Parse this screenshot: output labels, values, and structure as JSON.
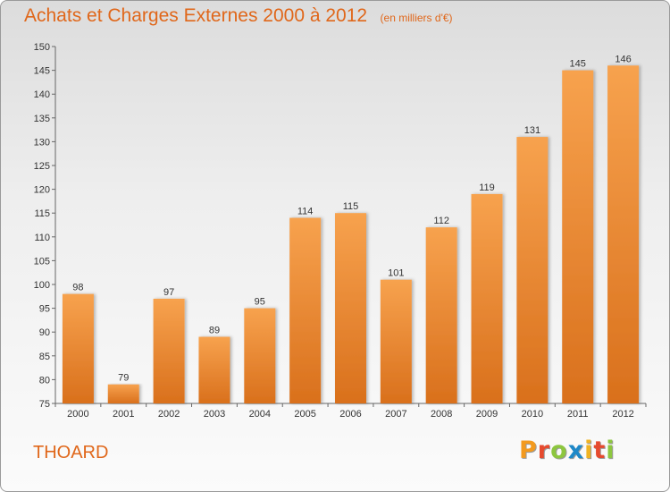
{
  "chart_data": {
    "type": "bar",
    "title": "Achats et Charges Externes 2000 à 2012",
    "unit_note": "(en milliers d'€)",
    "xlabel": "",
    "ylabel": "",
    "categories": [
      "2000",
      "2001",
      "2002",
      "2003",
      "2004",
      "2005",
      "2006",
      "2007",
      "2008",
      "2009",
      "2010",
      "2011",
      "2012"
    ],
    "values": [
      98,
      79,
      97,
      89,
      95,
      114,
      115,
      101,
      112,
      119,
      131,
      145,
      146
    ],
    "ylim": [
      75,
      150
    ],
    "yticks": [
      75,
      80,
      85,
      90,
      95,
      100,
      105,
      110,
      115,
      120,
      125,
      130,
      135,
      140,
      145,
      150
    ],
    "grid": false,
    "legend": "none",
    "bar_color_top": "#f7a24e",
    "bar_color_bottom": "#d9701c",
    "text_color": "#e0671a"
  },
  "footer": {
    "city": "THOARD",
    "logo_letters": [
      "P",
      "r",
      "o",
      "x",
      "i",
      "t",
      "i"
    ],
    "logo_colors": [
      "#f39a1e",
      "#e64a2e",
      "#8dc63f",
      "#1e88c8",
      "#f0b323",
      "#e64a2e",
      "#8dc63f"
    ]
  }
}
